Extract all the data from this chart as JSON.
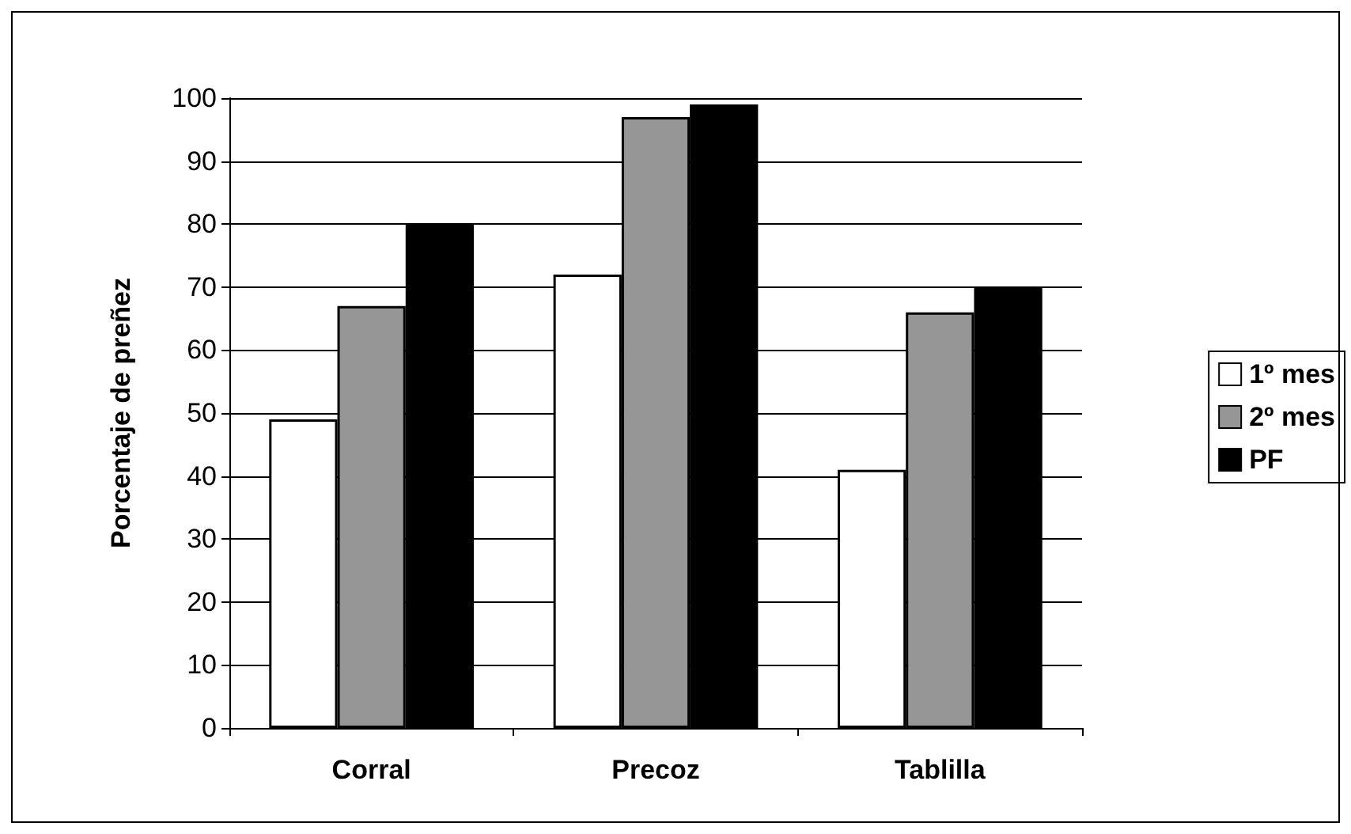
{
  "chart_data": {
    "type": "bar",
    "ylabel": "Porcentaje de preñez",
    "categories": [
      "Corral",
      "Precoz",
      "Tablilla"
    ],
    "series": [
      {
        "name": "1º mes",
        "color": "#ffffff",
        "values": [
          49,
          72,
          41
        ]
      },
      {
        "name": "2º mes",
        "color": "#969696",
        "values": [
          67,
          97,
          66
        ]
      },
      {
        "name": "PF",
        "color": "#000000",
        "values": [
          80,
          99,
          70
        ]
      }
    ],
    "ylim": [
      0,
      100
    ],
    "yticks": [
      0,
      10,
      20,
      30,
      40,
      50,
      60,
      70,
      80,
      90,
      100
    ],
    "grid": "y",
    "legend": "right"
  }
}
